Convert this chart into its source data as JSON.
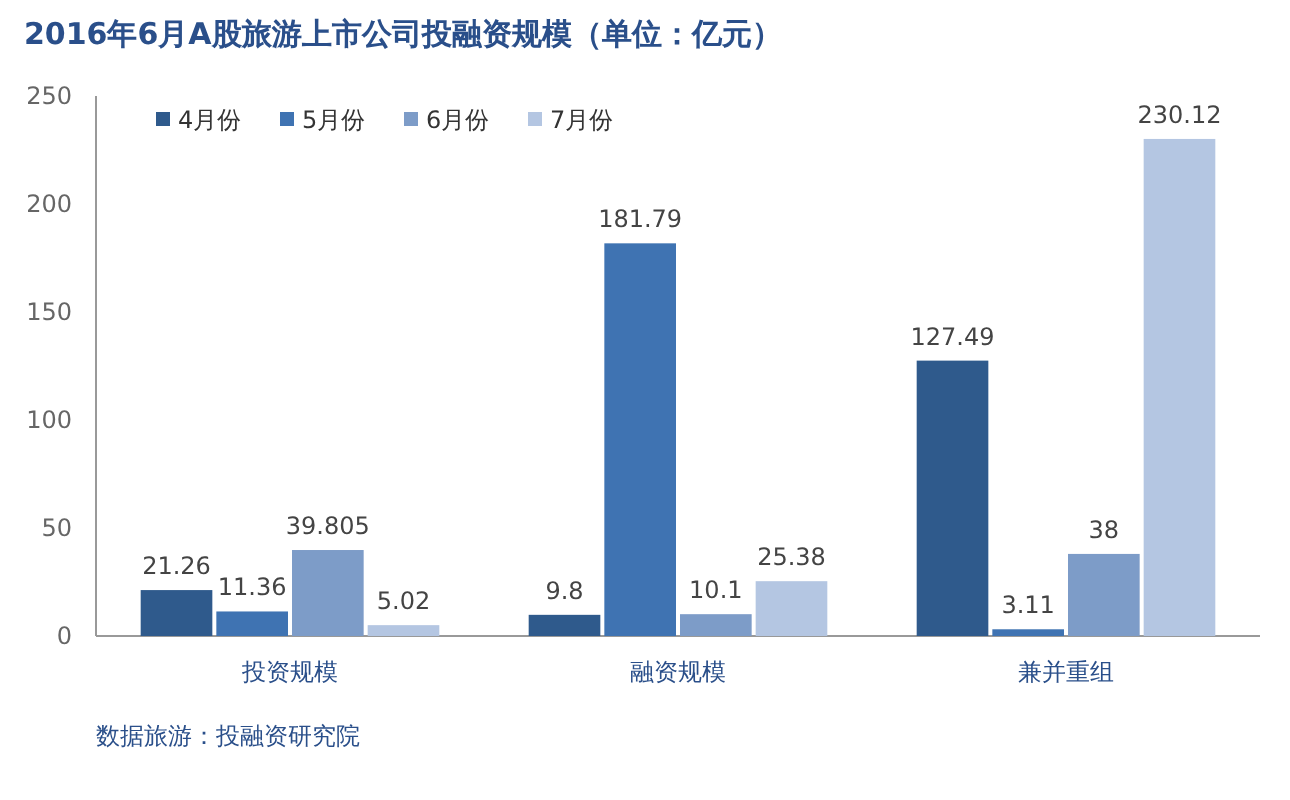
{
  "chart_data": {
    "type": "bar",
    "title": "2016年6月A股旅游上市公司投融资规模（单位：亿元）",
    "categories": [
      "投资规模",
      "融资规模",
      "兼并重组"
    ],
    "series": [
      {
        "name": "4月份",
        "color": "#2f5a8c",
        "values": [
          21.26,
          9.8,
          127.49
        ]
      },
      {
        "name": "5月份",
        "color": "#3f73b2",
        "values": [
          11.36,
          181.79,
          3.11
        ]
      },
      {
        "name": "6月份",
        "color": "#7d9cc8",
        "values": [
          39.805,
          10.1,
          38
        ]
      },
      {
        "name": "7月份",
        "color": "#b4c6e2",
        "values": [
          5.02,
          25.38,
          230.12
        ]
      }
    ],
    "ylim": [
      0,
      250
    ],
    "yticks": [
      0,
      50,
      100,
      150,
      200,
      250
    ],
    "data_labels": true,
    "grid": false,
    "legend": "top left",
    "annotations": [
      "数据旅游：投融资研究院"
    ]
  }
}
